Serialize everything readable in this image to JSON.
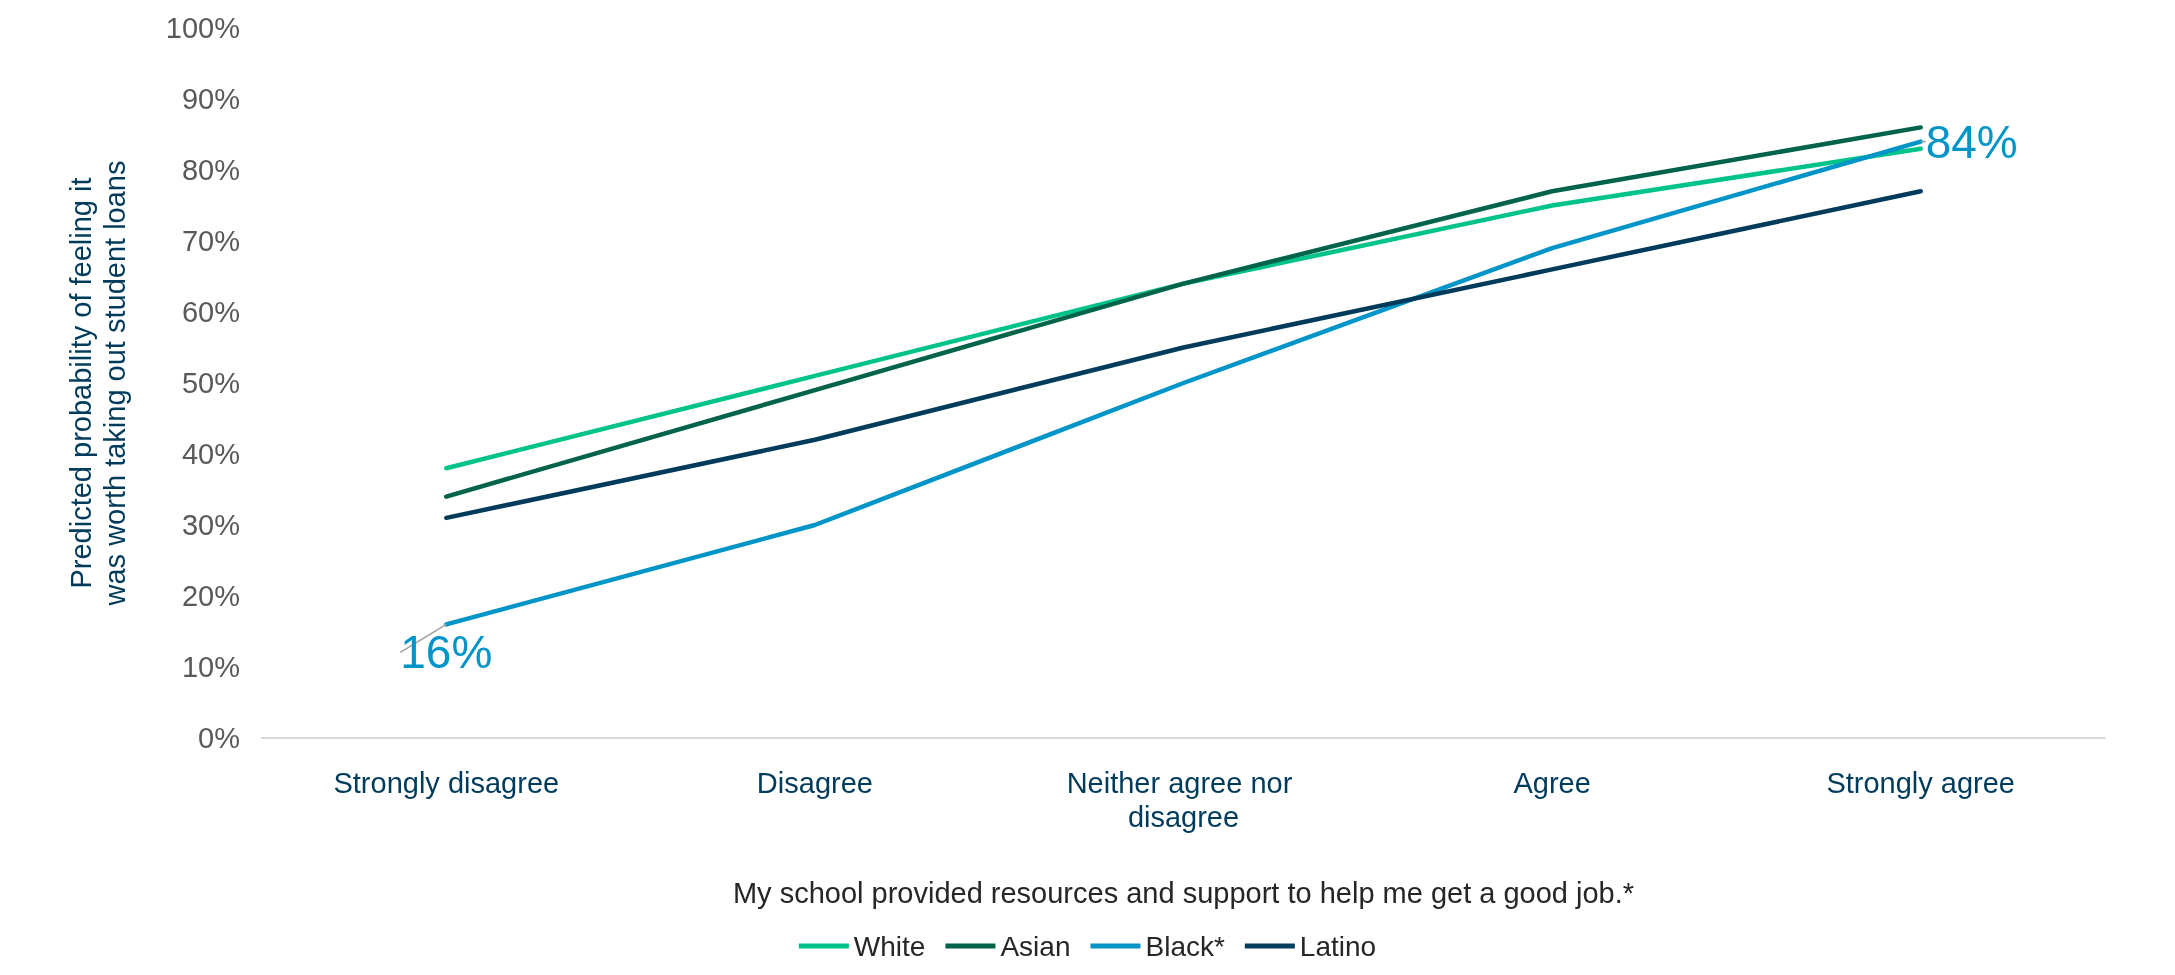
{
  "chart_data": {
    "type": "line",
    "xlabel": "My school provided resources and support to help me get a good job.*",
    "ylabel": "Predicted probability of feeling it was worth taking out student loans",
    "categories": [
      "Strongly disagree",
      "Disagree",
      "Neither agree nor disagree",
      "Agree",
      "Strongly agree"
    ],
    "series": [
      {
        "name": "White",
        "color": "#00c389",
        "values": [
          38,
          51,
          64,
          75,
          83
        ]
      },
      {
        "name": "Asian",
        "color": "#00634a",
        "values": [
          34,
          49,
          64,
          77,
          86
        ]
      },
      {
        "name": "Black*",
        "color": "#0095c8",
        "values": [
          16,
          30,
          50,
          69,
          84
        ],
        "value_labels": [
          "16%",
          null,
          null,
          null,
          "84%"
        ]
      },
      {
        "name": "Latino",
        "color": "#003b5c",
        "values": [
          31,
          42,
          55,
          66,
          77
        ]
      }
    ],
    "ylim": [
      0,
      100
    ],
    "yticks": [
      {
        "value": 0,
        "label": "0%"
      },
      {
        "value": 10,
        "label": "10%"
      },
      {
        "value": 20,
        "label": "20%"
      },
      {
        "value": 30,
        "label": "30%"
      },
      {
        "value": 40,
        "label": "40%"
      },
      {
        "value": 50,
        "label": "50%"
      },
      {
        "value": 60,
        "label": "60%"
      },
      {
        "value": 70,
        "label": "70%"
      },
      {
        "value": 80,
        "label": "80%"
      },
      {
        "value": 90,
        "label": "90%"
      },
      {
        "value": 100,
        "label": "100%"
      }
    ],
    "grid": false,
    "legend": "bottom",
    "marker": "none",
    "line_style": "solid"
  }
}
